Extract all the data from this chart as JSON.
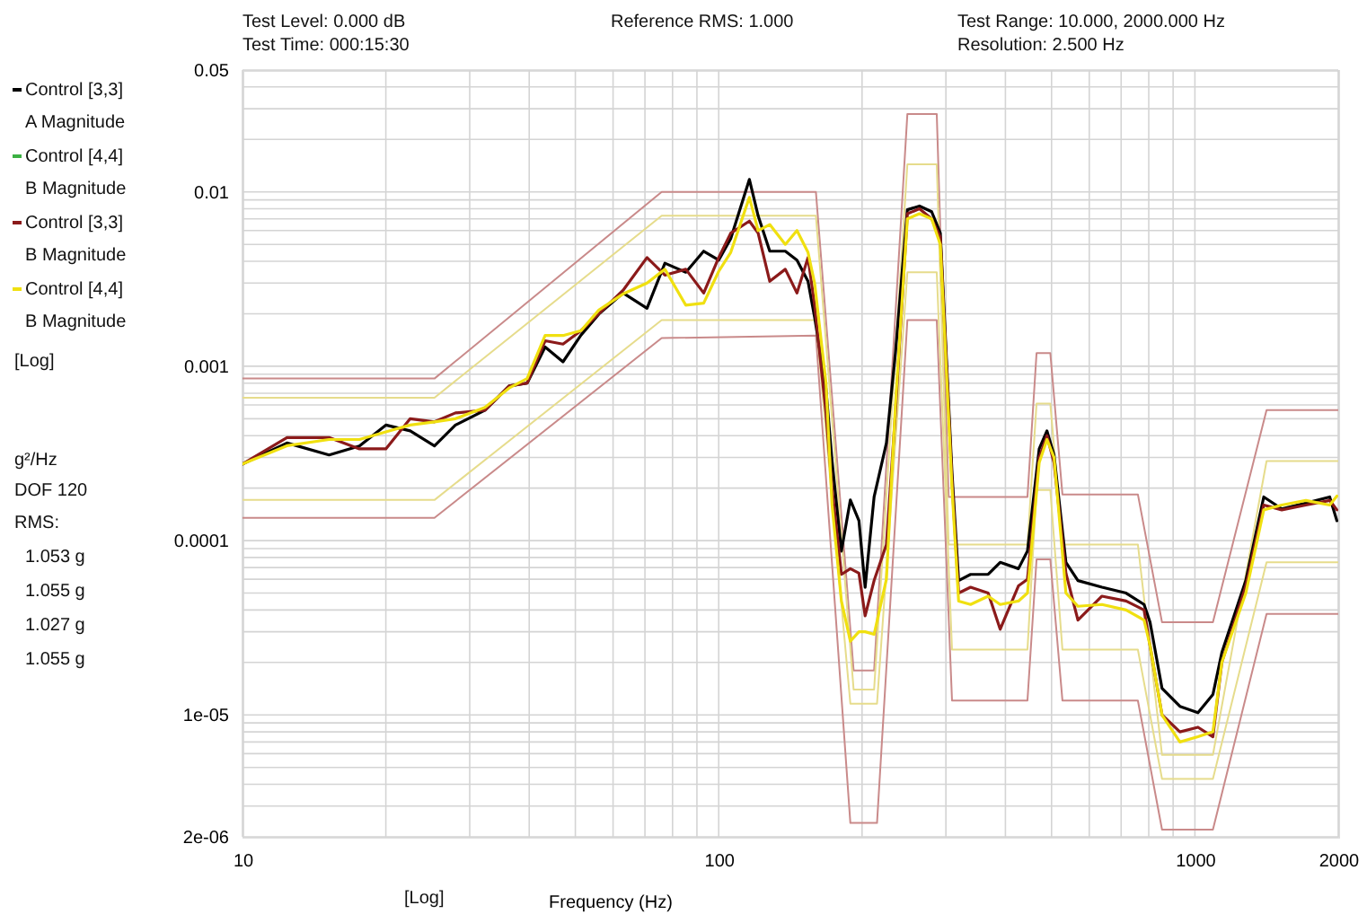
{
  "chart_data": {
    "type": "line",
    "xlabel": "Frequency (Hz)",
    "annotations": [
      "Test Level:  0.000 dB",
      "Test Time: 000:15:30",
      "Reference RMS:  1.000",
      "Test Range: 10.000, 2000.000 Hz",
      "Resolution:  2.500 Hz",
      "[Log]",
      "g²/Hz",
      "DOF 120",
      "RMS:",
      "1.053 g",
      "1.055 g",
      "1.027 g",
      "1.055 g",
      "[Log]"
    ],
    "log": "xy",
    "xlim": [
      10,
      2000
    ],
    "ylim": [
      2e-06,
      0.05
    ],
    "xticks": [
      10,
      100,
      1000,
      2000
    ],
    "yticks": [
      0.05,
      0.01,
      0.001,
      0.0001,
      {
        "value": 1e-05,
        "label": "1e-05"
      },
      {
        "value": 2e-06,
        "label": "2e-06"
      }
    ],
    "grid": true,
    "legend": "left",
    "marker": "none",
    "line_style": "solid",
    "x": [
      10,
      12.4,
      15.2,
      17.6,
      20,
      22.5,
      25.3,
      28,
      32.3,
      36.3,
      39.6,
      43.2,
      47.1,
      51.4,
      56,
      63,
      70.7,
      77.1,
      85.3,
      93,
      100,
      106,
      116,
      121,
      128,
      138,
      146,
      154,
      159,
      168,
      173,
      181,
      189,
      197,
      203,
      212,
      225,
      235,
      249,
      264,
      280,
      292,
      309,
      319,
      338,
      368,
      390,
      426,
      445,
      471,
      489,
      506,
      536,
      568,
      638,
      717,
      782,
      805,
      853,
      930,
      1015,
      1091,
      1139,
      1279,
      1395,
      1522,
      1710,
      1919,
      1987
    ],
    "series": [
      {
        "color": "#c98a8a",
        "x": [
          10,
          25.3,
          75.9,
          160,
          192,
          212,
          249,
          287,
          304,
          445,
          465,
          497,
          527,
          759,
          853,
          1091,
          1414,
          2000
        ],
        "values": [
          0.00085,
          0.00085,
          0.01,
          0.01,
          1.8e-05,
          1.8e-05,
          0.028,
          0.028,
          0.000178,
          0.000178,
          0.00119,
          0.00119,
          0.000184,
          0.000184,
          3.4e-05,
          3.4e-05,
          0.00056,
          0.00056
        ]
      },
      {
        "color": "#c98a8a",
        "x": [
          10,
          25.3,
          75.9,
          160,
          189,
          215,
          249,
          287,
          309,
          445,
          465,
          497,
          527,
          759,
          853,
          1091,
          1414,
          2000
        ],
        "values": [
          0.000135,
          0.000135,
          0.00145,
          0.0015,
          2.4e-06,
          2.4e-06,
          0.00184,
          0.00184,
          1.21e-05,
          1.21e-05,
          7.8e-05,
          7.8e-05,
          1.21e-05,
          1.21e-05,
          2.2e-06,
          2.2e-06,
          3.8e-05,
          3.8e-05
        ]
      },
      {
        "color": "#e6dc8c",
        "x": [
          10,
          25.3,
          75.9,
          160,
          192,
          212,
          249,
          287,
          304,
          445,
          465,
          497,
          527,
          759,
          853,
          1091,
          1414,
          2000
        ],
        "values": [
          0.00066,
          0.00066,
          0.0073,
          0.0073,
          1.4e-05,
          1.4e-05,
          0.0144,
          0.0144,
          9.5e-05,
          9.5e-05,
          0.00061,
          0.00061,
          9.5e-05,
          9.5e-05,
          5.9e-06,
          5.9e-06,
          0.000286,
          0.000286
        ]
      },
      {
        "color": "#e6dc8c",
        "x": [
          10,
          25.3,
          75.9,
          160,
          189,
          215,
          249,
          287,
          309,
          445,
          465,
          497,
          527,
          759,
          853,
          1091,
          1414,
          2000
        ],
        "values": [
          0.000171,
          0.000171,
          0.00184,
          0.00184,
          1.16e-05,
          1.16e-05,
          0.00346,
          0.00346,
          2.37e-05,
          2.37e-05,
          0.000195,
          0.000195,
          2.37e-05,
          2.37e-05,
          4.3e-06,
          4.3e-06,
          7.5e-05,
          7.5e-05
        ]
      },
      {
        "name": "Control [3,3]\nA Magnitude",
        "color": "#000000",
        "values": [
          0.000275,
          0.000363,
          0.00031,
          0.000349,
          0.00046,
          0.000426,
          0.000349,
          0.00046,
          0.00056,
          0.00077,
          0.0008,
          0.00129,
          0.00106,
          0.00151,
          0.00199,
          0.00263,
          0.00215,
          0.0039,
          0.00346,
          0.00457,
          0.00406,
          0.0054,
          0.0118,
          0.0073,
          0.00457,
          0.00457,
          0.00406,
          0.00307,
          0.00191,
          0.00074,
          0.000286,
          8.7e-05,
          0.000171,
          0.00013,
          5.4e-05,
          0.000178,
          0.000363,
          0.00119,
          0.0079,
          0.0083,
          0.0077,
          0.0058,
          0.000245,
          5.9e-05,
          6.4e-05,
          6.4e-05,
          7.5e-05,
          6.9e-05,
          8.7e-05,
          0.000336,
          0.000426,
          0.00031,
          7.5e-05,
          5.9e-05,
          5.4e-05,
          5e-05,
          4.3e-05,
          3.4e-05,
          1.42e-05,
          1.12e-05,
          1.03e-05,
          1.31e-05,
          2.28e-05,
          5.9e-05,
          0.000178,
          0.000152,
          0.000164,
          0.000178,
          0.00013
        ]
      },
      {
        "name": "Control [4,4]\nB Magnitude",
        "color": "#3cb043",
        "values": [
          null,
          null,
          null,
          null,
          null,
          null,
          null,
          null,
          null,
          null,
          null,
          null,
          null,
          null,
          null,
          null,
          null,
          null,
          null,
          null,
          null,
          null,
          null,
          null,
          null,
          null,
          null,
          null,
          null,
          null,
          null,
          null,
          null,
          null,
          null,
          null,
          null,
          null,
          null,
          null,
          null,
          null,
          null,
          null,
          null,
          null,
          null,
          null,
          null,
          null,
          null,
          null,
          null,
          null,
          null,
          null,
          null,
          null,
          null,
          null,
          null,
          null,
          null,
          null,
          null,
          null,
          null,
          null,
          null
        ]
      },
      {
        "name": "Control [3,3]\nB Magnitude",
        "color": "#8b1a1a",
        "values": [
          0.000275,
          0.00039,
          0.00039,
          0.000336,
          0.000336,
          0.0005,
          0.00048,
          0.00054,
          0.00056,
          0.00077,
          0.0008,
          0.0014,
          0.00134,
          0.0016,
          0.002,
          0.00273,
          0.0042,
          0.00333,
          0.0036,
          0.00263,
          0.0042,
          0.0058,
          0.0068,
          0.0058,
          0.00307,
          0.0036,
          0.00263,
          0.0042,
          0.00224,
          0.00054,
          0.0002,
          6.4e-05,
          6.9e-05,
          6.5e-05,
          3.7e-05,
          5.9e-05,
          9.5e-05,
          0.00054,
          0.0075,
          0.008,
          0.007,
          0.0055,
          0.00022,
          5e-05,
          5.4e-05,
          5e-05,
          3.1e-05,
          5.5e-05,
          6e-05,
          0.0003,
          0.0004,
          0.00028,
          6.5e-05,
          3.5e-05,
          4.8e-05,
          4.5e-05,
          4e-05,
          2.5e-05,
          1e-05,
          8e-06,
          8.5e-06,
          7.5e-06,
          2e-05,
          5.5e-05,
          0.00016,
          0.00015,
          0.00016,
          0.00017,
          0.00015
        ]
      },
      {
        "name": "Control [4,4]\nB Magnitude",
        "color": "#f0e010",
        "values": [
          0.000275,
          0.00035,
          0.00038,
          0.00038,
          0.00042,
          0.00046,
          0.00048,
          0.0005,
          0.00058,
          0.00075,
          0.00085,
          0.0015,
          0.0015,
          0.0016,
          0.0021,
          0.0026,
          0.003,
          0.0036,
          0.00224,
          0.0023,
          0.0035,
          0.0045,
          0.0093,
          0.006,
          0.0065,
          0.005,
          0.006,
          0.0045,
          0.003,
          0.0008,
          0.00016,
          4.5e-05,
          2.65e-05,
          3e-05,
          3e-05,
          2.9e-05,
          6e-05,
          0.0006,
          0.007,
          0.0075,
          0.007,
          0.005,
          0.0002,
          4.5e-05,
          4.3e-05,
          4.8e-05,
          4.3e-05,
          4.5e-05,
          5e-05,
          0.00028,
          0.00038,
          0.0003,
          5e-05,
          4.2e-05,
          4.3e-05,
          4e-05,
          3.5e-05,
          2.5e-05,
          1e-05,
          7e-06,
          7.5e-06,
          8e-06,
          2e-05,
          5e-05,
          0.00015,
          0.00016,
          0.00017,
          0.00016,
          0.00018
        ]
      }
    ]
  }
}
